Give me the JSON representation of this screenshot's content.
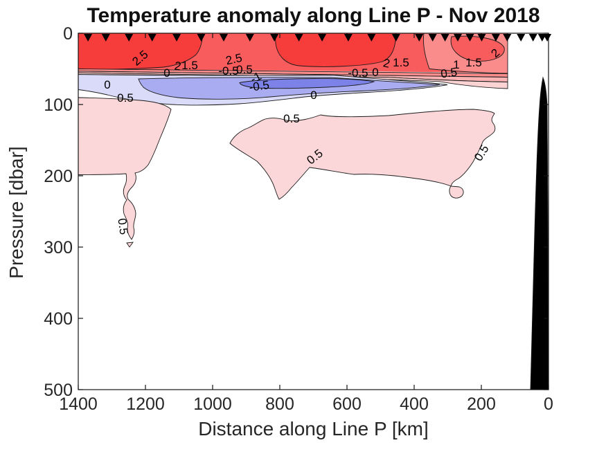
{
  "title": "Temperature anomaly along Line P - Nov 2018",
  "chart_data": {
    "type": "filled-contour",
    "title": "Temperature anomaly along Line P - Nov 2018",
    "xlabel": "Distance along Line P [km]",
    "ylabel": "Pressure [dbar]",
    "x_ticks": [
      1400,
      1200,
      1000,
      800,
      600,
      400,
      200,
      0
    ],
    "y_ticks": [
      0,
      100,
      200,
      300,
      400,
      500
    ],
    "x_range": [
      1400,
      0
    ],
    "y_range": [
      0,
      500
    ],
    "x_axis_reversed": true,
    "y_axis_increases_downward": true,
    "grid": false,
    "contour_interval": 0.5,
    "labeled_levels": [
      -1,
      -0.5,
      0,
      0.5,
      1,
      1.5,
      2,
      2.5
    ],
    "colors": {
      "deep_red": "#f73c3c",
      "red": "#f95c5c",
      "light_red": "#fa8c8c",
      "pale_red": "#fbb3b3",
      "pink": "#fcd3d3",
      "blob_pink": "#fbd7d9",
      "pale_blue": "#d9dbf8",
      "mid_blue": "#a9acf0",
      "deep_blue": "#7d82e9",
      "bathymetry": "#000000",
      "axis": "#151515",
      "text": "#262626"
    },
    "station_markers_km": [
      1371,
      1318,
      1249,
      1180,
      1107,
      1034,
      967,
      889,
      816,
      743,
      674,
      596,
      527,
      454,
      385,
      345,
      308,
      270,
      234,
      199,
      157,
      123,
      82,
      46,
      19,
      4
    ],
    "features": {
      "surface_layer": "warm anomaly +2 to +2.5 degC in upper 50 dbar along 1400-130 km",
      "subsurface_layer": "cool anomaly -0.5 to -1 degC near 60-90 dbar between 1300-300 km",
      "deep_patches": "+0.5 degC patches between 100-350 dbar",
      "bathymetry": "black seafloor wedge near coast (0-60 km)"
    },
    "contour_labels": [
      {
        "v": "2.5",
        "x": 206,
        "y": 88,
        "r": -40
      },
      {
        "v": "2",
        "x": 256,
        "y": 101,
        "r": 8
      },
      {
        "v": "1.5",
        "x": 274,
        "y": 100,
        "r": 0
      },
      {
        "v": "0",
        "x": 241,
        "y": 111,
        "r": 0
      },
      {
        "v": "2.5",
        "x": 339,
        "y": 91,
        "r": -12
      },
      {
        "v": "-0.5",
        "x": 330,
        "y": 108,
        "r": 0
      },
      {
        "v": "0.5",
        "x": 353,
        "y": 106,
        "r": 0
      },
      {
        "v": "-1",
        "x": 372,
        "y": 117,
        "r": -28
      },
      {
        "v": "-0.5",
        "x": 375,
        "y": 130,
        "r": -8
      },
      {
        "v": "0",
        "x": 453,
        "y": 143,
        "r": 0
      },
      {
        "v": "-0.5",
        "x": 517,
        "y": 111,
        "r": 0
      },
      {
        "v": "0",
        "x": 542,
        "y": 110,
        "r": 0
      },
      {
        "v": "2",
        "x": 557,
        "y": 97,
        "r": 12
      },
      {
        "v": "1.5",
        "x": 579,
        "y": 96,
        "r": 0
      },
      {
        "v": "1",
        "x": 659,
        "y": 99,
        "r": 0
      },
      {
        "v": "1.5",
        "x": 684,
        "y": 96,
        "r": 0
      },
      {
        "v": "0.5",
        "x": 649,
        "y": 111,
        "r": -8
      },
      {
        "v": "2",
        "x": 719,
        "y": 81,
        "r": -42
      },
      {
        "v": "0",
        "x": 155,
        "y": 128,
        "r": 0
      },
      {
        "v": "0.5",
        "x": 181,
        "y": 147,
        "r": 0
      },
      {
        "v": "0.5",
        "x": 421,
        "y": 177,
        "r": 0
      },
      {
        "v": "0.5",
        "x": 458,
        "y": 231,
        "r": -38
      },
      {
        "v": "0.5",
        "x": 700,
        "y": 224,
        "r": -58
      },
      {
        "v": "0.5",
        "x": 172,
        "y": 328,
        "r": 82
      }
    ]
  }
}
